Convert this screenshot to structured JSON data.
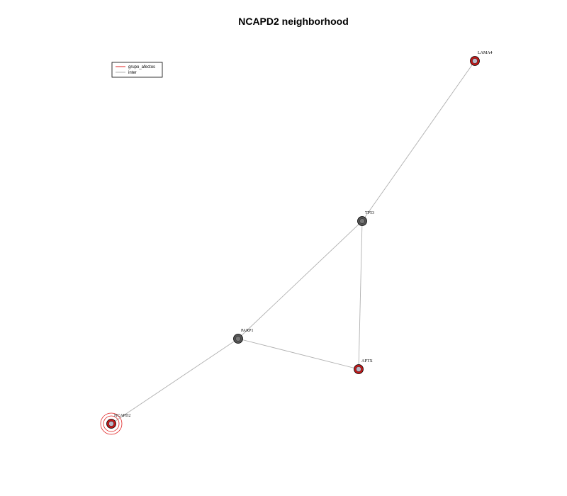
{
  "title": "NCAPD2 neighborhood",
  "legend": [
    {
      "label": "grupo_afectos",
      "color": "#e02020"
    },
    {
      "label": "inter",
      "color": "#b0b0b0"
    }
  ],
  "nodes": [
    {
      "id": "LAMA4",
      "label": "LAMA4",
      "style": "red"
    },
    {
      "id": "TP53",
      "label": "TP53",
      "style": "gray"
    },
    {
      "id": "PARP1",
      "label": "PARP1",
      "style": "gray"
    },
    {
      "id": "APTX",
      "label": "APTX",
      "style": "red"
    },
    {
      "id": "NCAPD2",
      "label": "NCAPD2",
      "style": "focus"
    }
  ],
  "edges": [
    {
      "from": "LAMA4",
      "to": "TP53",
      "type": "inter"
    },
    {
      "from": "TP53",
      "to": "PARP1",
      "type": "inter"
    },
    {
      "from": "TP53",
      "to": "APTX",
      "type": "inter"
    },
    {
      "from": "PARP1",
      "to": "APTX",
      "type": "inter"
    },
    {
      "from": "PARP1",
      "to": "NCAPD2",
      "type": "inter"
    }
  ],
  "colors": {
    "node_red": "#c41818",
    "node_gray": "#555555",
    "node_inner": "#b8b8c8",
    "edge": "#b0b0b0",
    "focus_ring": "#e02020"
  }
}
